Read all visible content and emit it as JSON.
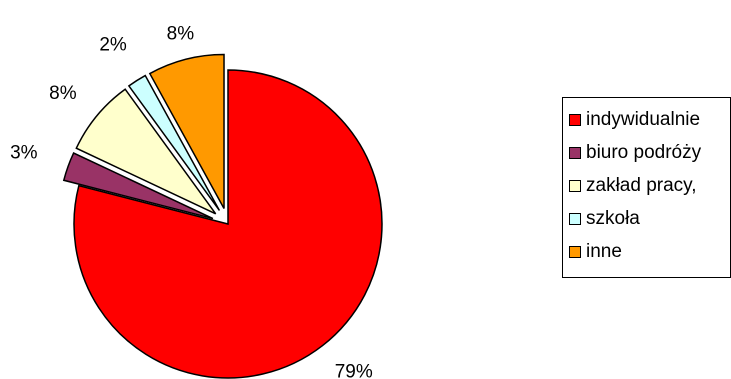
{
  "chart_data": {
    "type": "pie",
    "title": "",
    "legend_position": "right",
    "slices": [
      {
        "name": "indywidualnie",
        "value": 79,
        "label": "79%",
        "color": "#ff0000",
        "exploded": false
      },
      {
        "name": "biuro podróży",
        "value": 3,
        "label": "3%",
        "color": "#993366",
        "exploded": true
      },
      {
        "name": "zakład pracy,",
        "value": 8,
        "label": "8%",
        "color": "#ffffcc",
        "exploded": true
      },
      {
        "name": "szkoła",
        "value": 2,
        "label": "2%",
        "color": "#ccffff",
        "exploded": true
      },
      {
        "name": "inne",
        "value": 8,
        "label": "8%",
        "color": "#ff9900",
        "exploded": true
      }
    ]
  }
}
